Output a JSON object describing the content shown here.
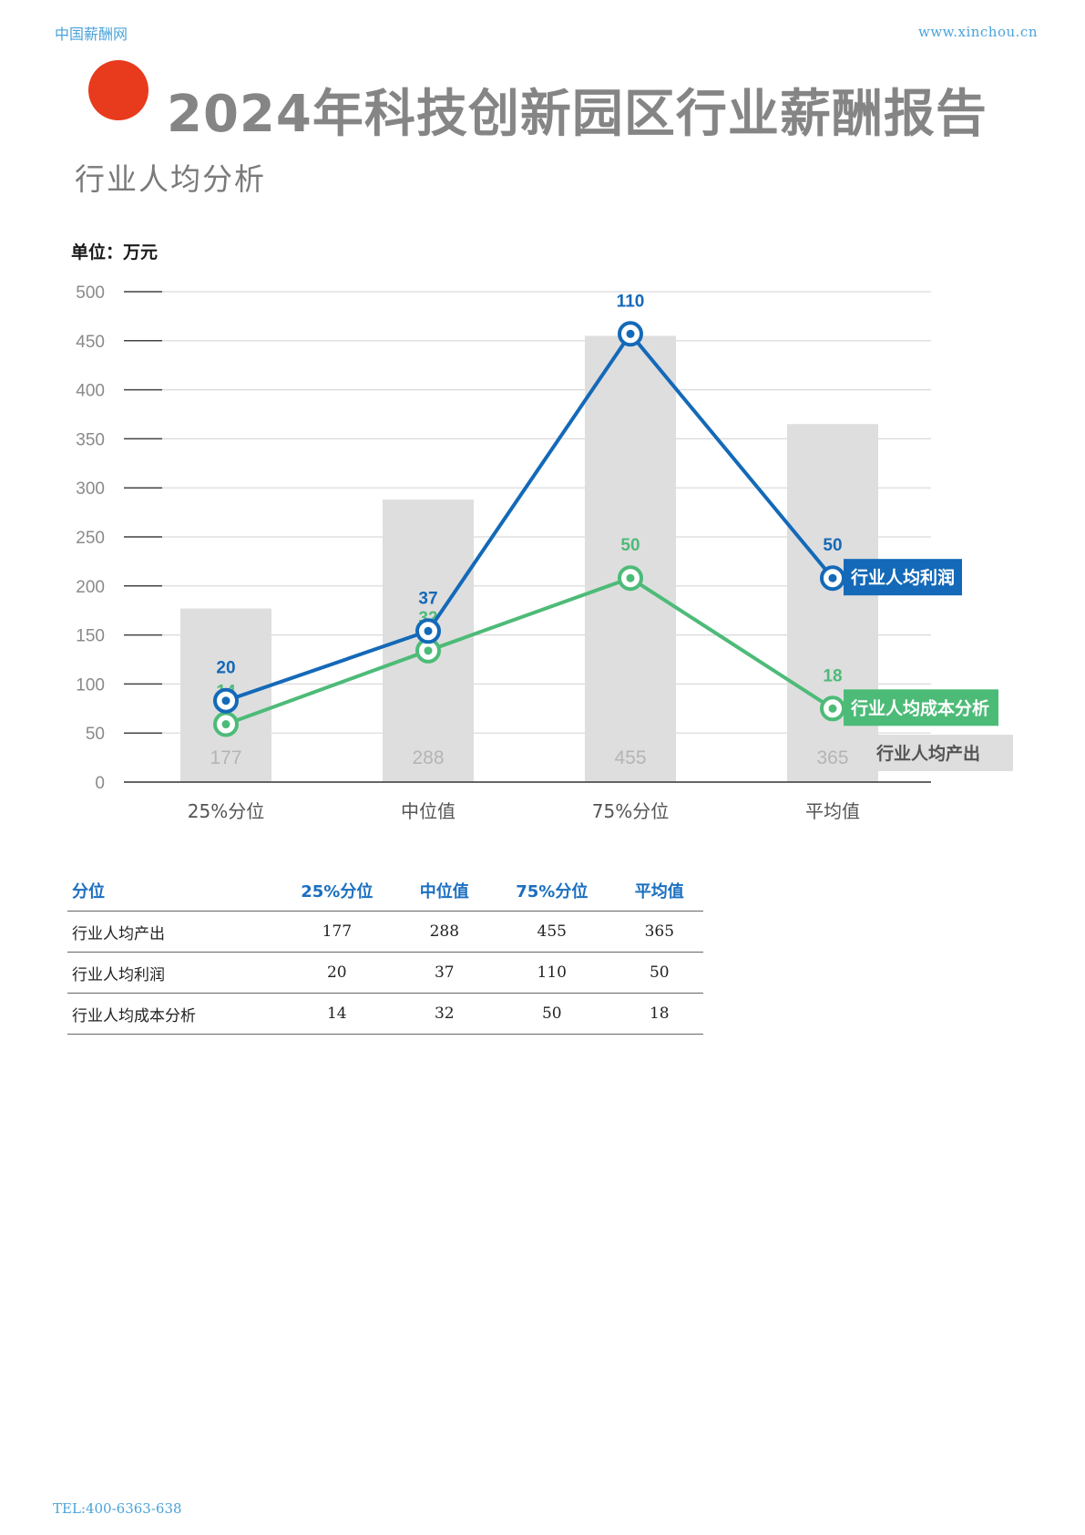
{
  "header": {
    "site_name": "中国薪酬网",
    "site_url": "www.xinchou.cn"
  },
  "page_title": "2024年科技创新园区行业薪酬报告",
  "section_title": "行业人均分析",
  "colors": {
    "accent_dot": "#e83a1c",
    "profit_series": "#1469b8",
    "cost_series": "#4dbb78",
    "output_bars": "#dedede",
    "table_header": "#1b6fbf"
  },
  "chart_data": {
    "type": "bar",
    "unit_label": "单位：万元",
    "categories": [
      "25%分位",
      "中位值",
      "75%分位",
      "平均值"
    ],
    "ylim": [
      0,
      500
    ],
    "yticks": [
      0,
      50,
      100,
      150,
      200,
      250,
      300,
      350,
      400,
      450,
      500
    ],
    "grid": true,
    "series": [
      {
        "name": "行业人均产出",
        "kind": "bar",
        "values": [
          177,
          288,
          455,
          365
        ],
        "color": "#dedede"
      },
      {
        "name": "行业人均利润",
        "kind": "line",
        "values": [
          20,
          37,
          110,
          50
        ],
        "plotted_values": [
          83,
          154,
          457,
          208
        ],
        "color": "#1469b8"
      },
      {
        "name": "行业人均成本分析",
        "kind": "line",
        "values": [
          14,
          32,
          50,
          18
        ],
        "plotted_values": [
          59,
          134,
          208,
          75
        ],
        "color": "#4dbb78"
      }
    ]
  },
  "table": {
    "headers": [
      "分位",
      "25%分位",
      "中位值",
      "75%分位",
      "平均值"
    ],
    "rows": [
      [
        "行业人均产出",
        "177",
        "288",
        "455",
        "365"
      ],
      [
        "行业人均利润",
        "20",
        "37",
        "110",
        "50"
      ],
      [
        "行业人均成本分析",
        "14",
        "32",
        "50",
        "18"
      ]
    ]
  },
  "footer": {
    "tel": "TEL:400-6363-638"
  }
}
